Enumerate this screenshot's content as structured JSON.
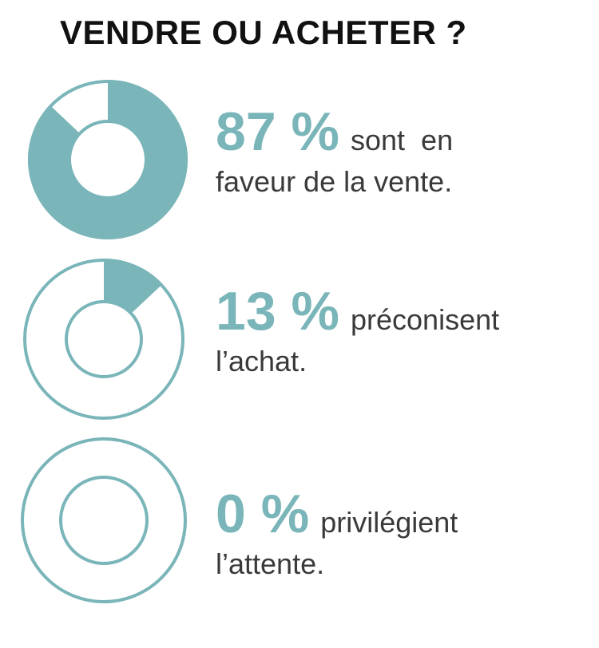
{
  "title": "VENDRE OU ACHETER ?",
  "chart_data": [
    {
      "type": "donut",
      "values": [
        87
      ],
      "value_labels": [
        "87 %"
      ],
      "color": "#7ab5b9",
      "caption": [
        "sont  en",
        "faveur de la vente."
      ]
    },
    {
      "type": "donut",
      "values": [
        13
      ],
      "value_labels": [
        "13 %"
      ],
      "color": "#7ab5b9",
      "caption": [
        "préconisent",
        "l’achat."
      ]
    },
    {
      "type": "donut",
      "values": [
        0
      ],
      "value_labels": [
        "0 %"
      ],
      "color": "#7ab5b9",
      "caption": [
        "privilégient",
        "l’attente."
      ]
    }
  ]
}
